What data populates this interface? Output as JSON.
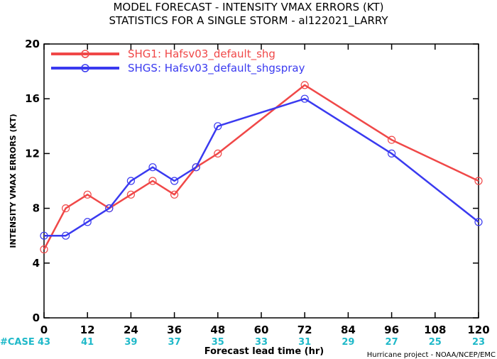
{
  "colors": {
    "red": "#f04848",
    "blue": "#3a3af0",
    "case": "#1fb9c9"
  },
  "chart_data": {
    "type": "line",
    "title": "MODEL FORECAST - INTENSITY VMAX ERRORS (KT)",
    "subtitle": "STATISTICS FOR A SINGLE STORM - al122021_LARRY",
    "xlabel": "Forecast lead time (hr)",
    "ylabel": "INTENSITY VMAX ERRORS (KT)",
    "xlim": [
      0,
      120
    ],
    "ylim": [
      0,
      20
    ],
    "xticks": [
      0,
      12,
      24,
      36,
      48,
      60,
      72,
      84,
      96,
      108,
      120
    ],
    "yticks": [
      0,
      4,
      8,
      12,
      16,
      20
    ],
    "series": [
      {
        "name": "SHG1: Hafsv03_default_shg",
        "color": "#f04848",
        "x": [
          0,
          6,
          12,
          18,
          24,
          30,
          36,
          42,
          48,
          72,
          96,
          120
        ],
        "y": [
          5,
          8,
          9,
          8,
          9,
          10,
          9,
          11,
          12,
          17,
          13,
          10
        ]
      },
      {
        "name": "SHGS: Hafsv03_default_shgspray",
        "color": "#3a3af0",
        "x": [
          0,
          6,
          12,
          18,
          24,
          30,
          36,
          42,
          48,
          72,
          96,
          120
        ],
        "y": [
          6,
          6,
          7,
          8,
          10,
          11,
          10,
          11,
          14,
          16,
          12,
          7
        ]
      }
    ],
    "case_label": "#CASE",
    "case_counts": [
      {
        "x": 0,
        "n": "43"
      },
      {
        "x": 12,
        "n": "41"
      },
      {
        "x": 24,
        "n": "39"
      },
      {
        "x": 36,
        "n": "37"
      },
      {
        "x": 48,
        "n": "35"
      },
      {
        "x": 60,
        "n": "33"
      },
      {
        "x": 72,
        "n": "31"
      },
      {
        "x": 84,
        "n": "29"
      },
      {
        "x": 96,
        "n": "27"
      },
      {
        "x": 108,
        "n": "25"
      },
      {
        "x": 120,
        "n": "23"
      }
    ],
    "legend_position": "top-left",
    "grid": false
  },
  "credit": "Hurricane project - NOAA/NCEP/EMC"
}
